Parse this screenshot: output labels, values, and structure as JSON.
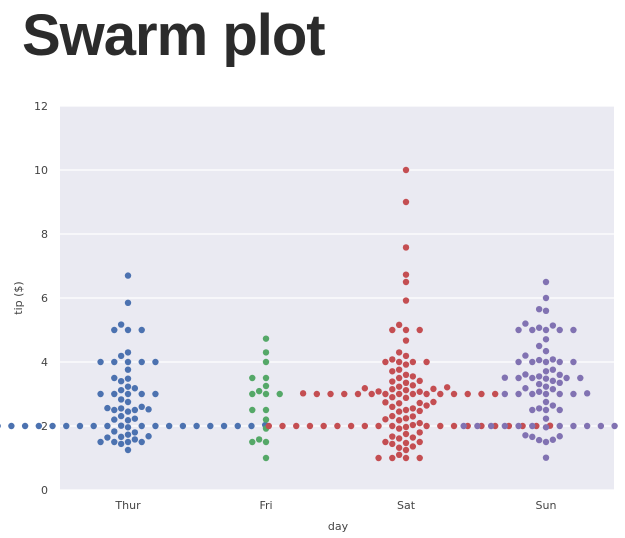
{
  "slide": {
    "title": "Swarm plot"
  },
  "chart_data": {
    "type": "scatter",
    "subtype": "swarm",
    "title": "",
    "xlabel": "day",
    "ylabel": "tip ($)",
    "categories": [
      "Thur",
      "Fri",
      "Sat",
      "Sun"
    ],
    "ylim": [
      0,
      12
    ],
    "yticks": [
      0,
      2,
      4,
      6,
      8,
      10,
      12
    ],
    "grid": true,
    "legend": "none",
    "colors": {
      "Thur": "#4c72b0",
      "Fri": "#55a868",
      "Sat": "#c44e52",
      "Sun": "#8172b2",
      "background": "#eaeaf2",
      "grid": "#ffffff"
    },
    "series": [
      {
        "category": "Thur",
        "values": [
          1.25,
          1.44,
          1.5,
          1.5,
          1.5,
          1.5,
          1.58,
          1.64,
          1.66,
          1.68,
          1.73,
          1.8,
          1.83,
          1.96,
          2,
          2,
          2,
          2,
          2,
          2,
          2,
          2,
          2,
          2,
          2,
          2,
          2,
          2,
          2,
          2,
          2,
          2,
          2.01,
          2.03,
          2.18,
          2.2,
          2.23,
          2.31,
          2.45,
          2.5,
          2.5,
          2.52,
          2.55,
          2.56,
          2.6,
          2.75,
          2.83,
          3,
          3,
          3,
          3,
          3,
          3.12,
          3.18,
          3.23,
          3.4,
          3.48,
          3.5,
          3.76,
          4,
          4,
          4,
          4,
          4,
          4.19,
          4.3,
          5,
          5,
          5,
          5.17,
          5.85,
          6.7
        ]
      },
      {
        "category": "Fri",
        "values": [
          1,
          1.5,
          1.5,
          1.58,
          1.92,
          2.2,
          2.5,
          2.5,
          3,
          3,
          3,
          3.09,
          3.25,
          3.5,
          3.5,
          4,
          4.3,
          4.73
        ]
      },
      {
        "category": "Sat",
        "values": [
          1,
          1,
          1,
          1,
          1.1,
          1.25,
          1.32,
          1.36,
          1.44,
          1.47,
          1.5,
          1.5,
          1.61,
          1.64,
          1.67,
          1.75,
          1.8,
          1.92,
          1.97,
          2,
          2,
          2,
          2,
          2,
          2,
          2,
          2,
          2,
          2,
          2,
          2,
          2,
          2,
          2,
          2,
          2,
          2,
          2,
          2.01,
          2.03,
          2.09,
          2.18,
          2.21,
          2.24,
          2.3,
          2.31,
          2.45,
          2.47,
          2.5,
          2.55,
          2.6,
          2.64,
          2.71,
          2.72,
          2.74,
          2.75,
          2.88,
          2.9,
          3,
          3,
          3,
          3,
          3,
          3,
          3,
          3,
          3,
          3,
          3,
          3,
          3,
          3,
          3.02,
          3.07,
          3.08,
          3.12,
          3.15,
          3.16,
          3.18,
          3.21,
          3.23,
          3.27,
          3.35,
          3.39,
          3.41,
          3.5,
          3.55,
          3.6,
          3.71,
          3.76,
          3.92,
          4,
          4,
          4,
          4,
          4.08,
          4.19,
          4.3,
          4.67,
          5,
          5,
          5,
          5.16,
          5.92,
          6.5,
          6.73,
          7.58,
          9,
          10
        ]
      },
      {
        "category": "Sun",
        "values": [
          1.01,
          1.5,
          1.56,
          1.57,
          1.66,
          1.68,
          1.71,
          1.96,
          2,
          2,
          2,
          2,
          2,
          2,
          2,
          2,
          2,
          2,
          2,
          2,
          2.23,
          2.5,
          2.5,
          2.5,
          2.55,
          2.64,
          2.75,
          3,
          3,
          3,
          3,
          3,
          3,
          3.02,
          3.07,
          3.15,
          3.18,
          3.23,
          3.31,
          3.35,
          3.41,
          3.48,
          3.5,
          3.5,
          3.5,
          3.5,
          3.51,
          3.55,
          3.6,
          3.61,
          3.71,
          3.76,
          4,
          4,
          4,
          4,
          4,
          4.06,
          4.08,
          4.2,
          4.34,
          4.5,
          4.71,
          5,
          5,
          5,
          5,
          5,
          5.07,
          5.14,
          5.2,
          5.6,
          5.65,
          6,
          6.5
        ]
      }
    ]
  }
}
